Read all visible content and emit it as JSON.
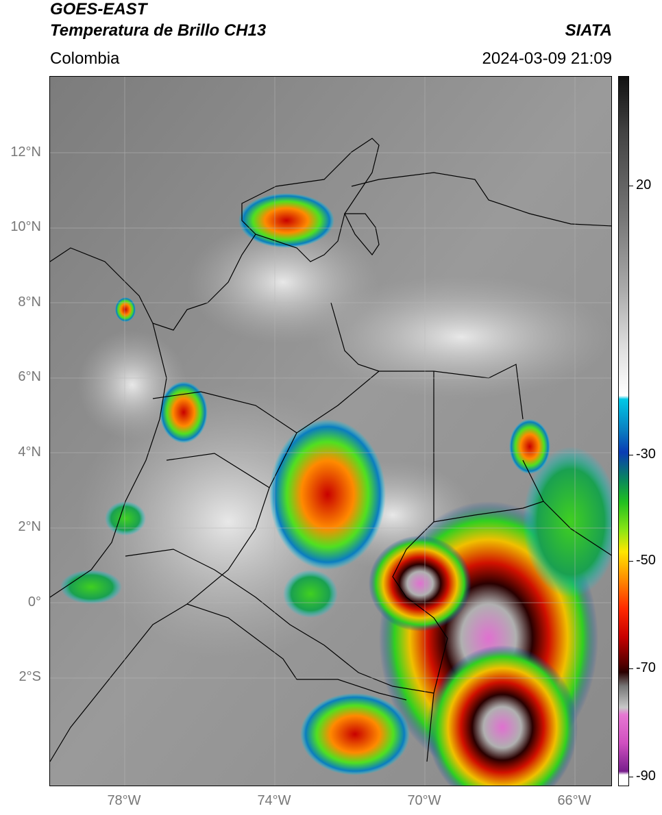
{
  "header": {
    "satellite": "GOES-EAST",
    "product": "Temperatura de Brillo CH13",
    "region": "Colombia",
    "source": "SIATA",
    "datetime": "2024-03-09 21:09"
  },
  "map": {
    "lat_labels": [
      "12°N",
      "10°N",
      "8°N",
      "6°N",
      "4°N",
      "2°N",
      "0°",
      "2°S"
    ],
    "lon_labels": [
      "78°W",
      "74°W",
      "70°W",
      "66°W"
    ],
    "lat_range": [
      -4.9,
      14.0
    ],
    "lon_range": [
      -80.0,
      -65.0
    ],
    "graticule": true
  },
  "colorbar": {
    "labels": [
      "20",
      "-30",
      "-50",
      "-70",
      "-90"
    ],
    "stops": [
      "#111111",
      "#ffffff",
      "#00c8e6",
      "#0a3cb4",
      "#0aa03c",
      "#32dc14",
      "#ffe600",
      "#ff5a00",
      "#c80000",
      "#2a0000",
      "#c8c8c8",
      "#e678d2",
      "#781e8c"
    ]
  },
  "colors": {
    "background": "#ffffff",
    "tick_label": "#777777",
    "border": "#000000"
  }
}
